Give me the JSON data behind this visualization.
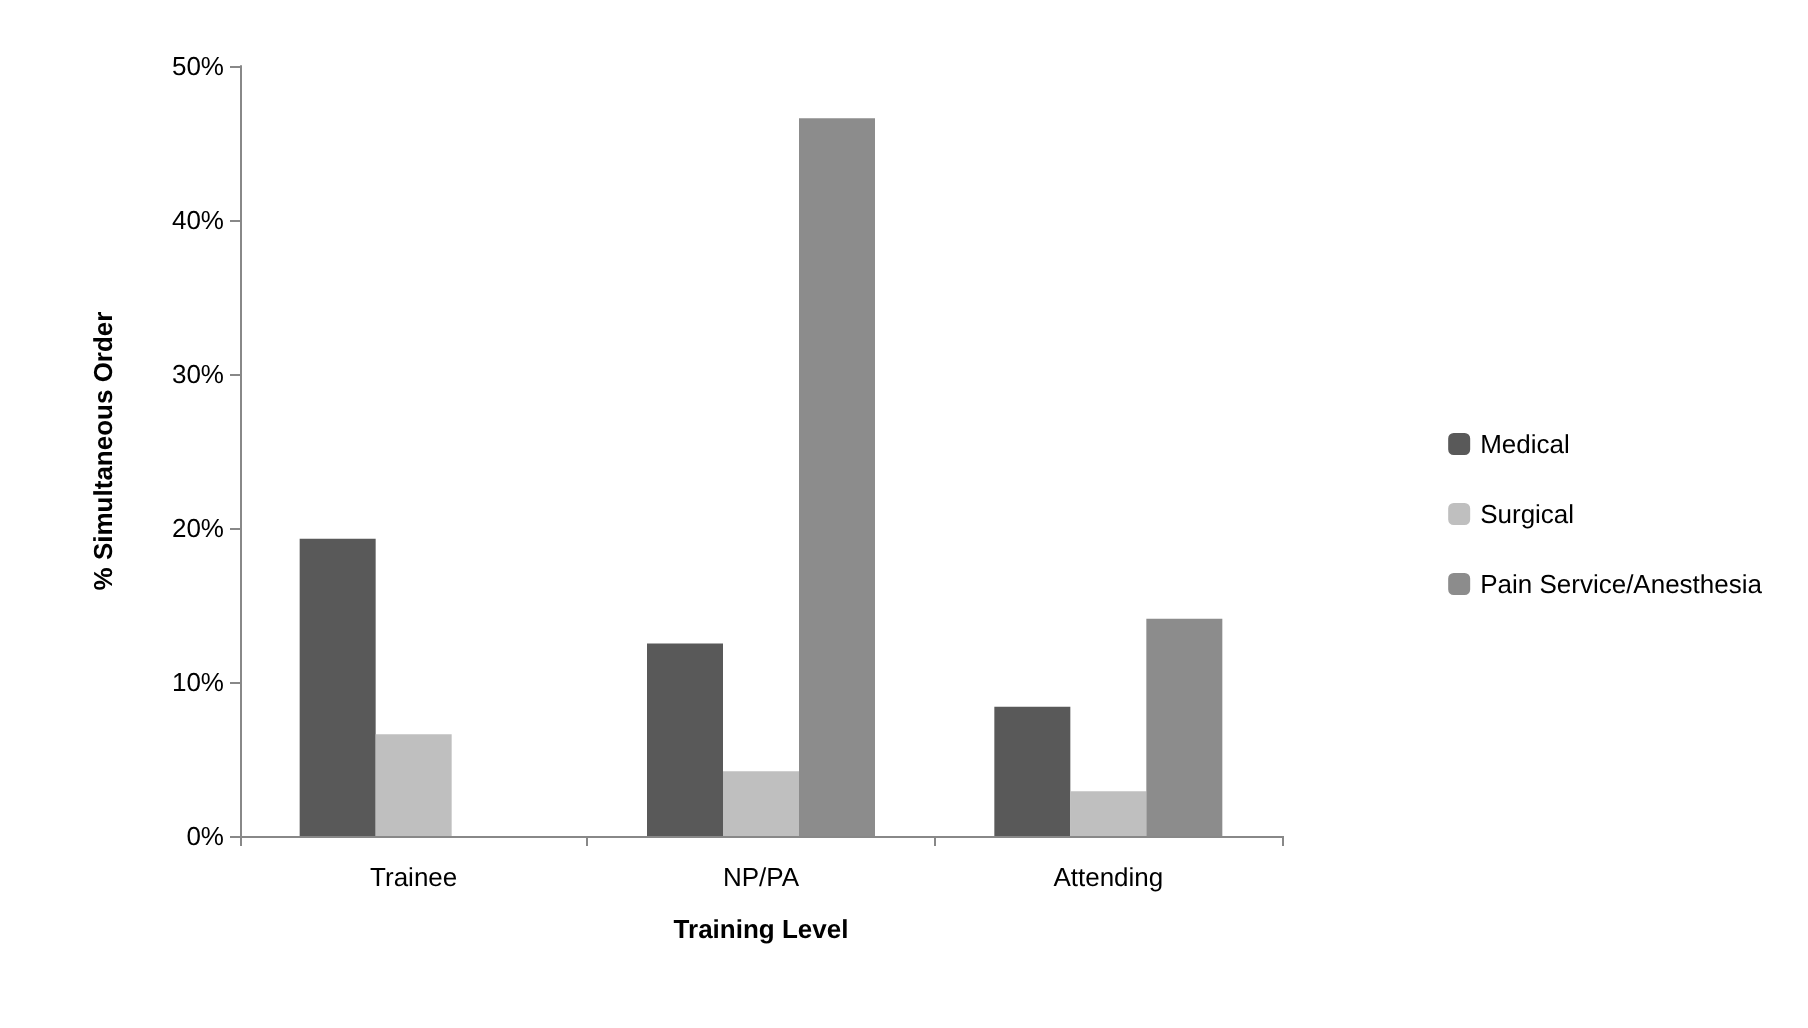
{
  "chart_data": {
    "type": "bar",
    "xlabel": "Training Level",
    "ylabel": "% Simultaneous Order",
    "categories": [
      "Trainee",
      "NP/PA",
      "Attending"
    ],
    "series": [
      {
        "name": "Medical",
        "color": "#595959",
        "values": [
          19.3,
          12.5,
          8.4
        ]
      },
      {
        "name": "Surgical",
        "color": "#bfbfbf",
        "values": [
          6.6,
          4.2,
          2.9
        ]
      },
      {
        "name": "Pain Service/Anesthesia",
        "color": "#8c8c8c",
        "values": [
          0,
          46.6,
          14.1
        ]
      }
    ],
    "ylim": [
      0,
      50
    ],
    "yticks": [
      {
        "value": 0,
        "label": "0%"
      },
      {
        "value": 10,
        "label": "10%"
      },
      {
        "value": 20,
        "label": "20%"
      },
      {
        "value": 30,
        "label": "30%"
      },
      {
        "value": 40,
        "label": "40%"
      },
      {
        "value": 50,
        "label": "50%"
      }
    ],
    "legend": "right",
    "grid": false
  }
}
